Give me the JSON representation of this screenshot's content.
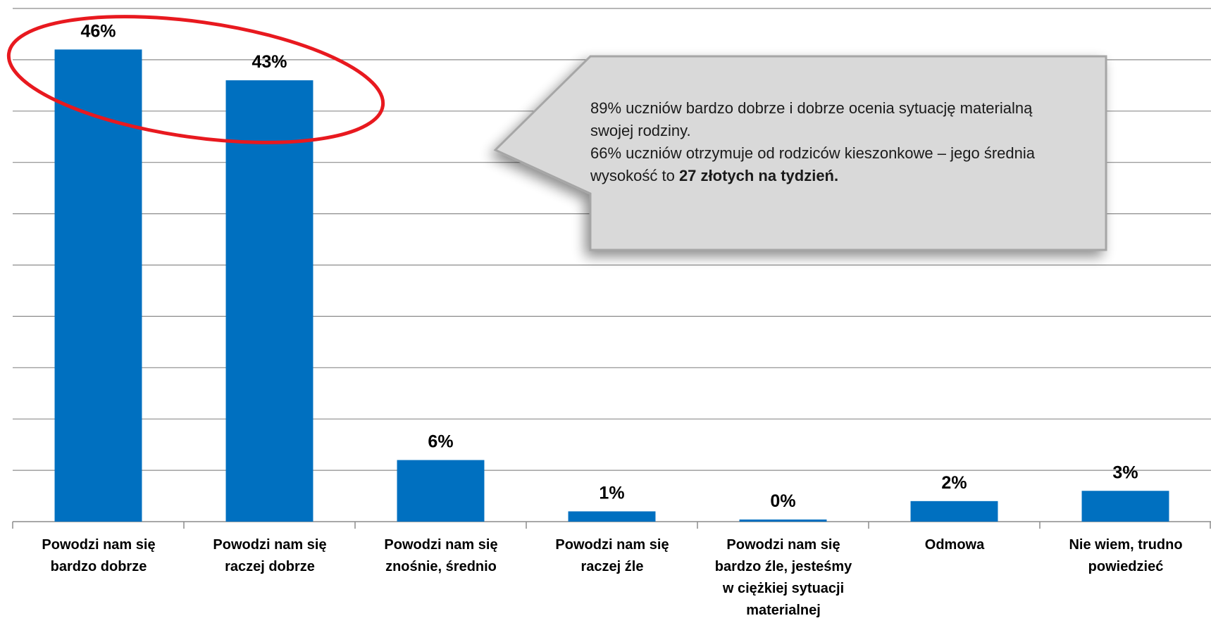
{
  "chart_data": {
    "type": "bar",
    "categories": [
      "Powodzi nam się\nbardzo dobrze",
      "Powodzi nam się\nraczej dobrze",
      "Powodzi nam się\nznośnie, średnio",
      "Powodzi nam się\nraczej źle",
      "Powodzi nam się\nbardzo źle, jesteśmy\nw ciężkiej sytuacji\nmaterialnej",
      "Odmowa",
      "Nie wiem, trudno\npowiedzieć"
    ],
    "values": [
      46,
      43,
      6,
      1,
      0,
      2,
      3
    ],
    "data_labels": [
      "46%",
      "43%",
      "6%",
      "1%",
      "0%",
      "2%",
      "3%"
    ],
    "ylim": [
      0,
      50
    ],
    "grid": true,
    "bar_color": "#0070C0",
    "highlight_color": "#E8191F"
  },
  "callout": {
    "line1": "89% uczniów bardzo dobrze i dobrze ocenia sytuację materialną swojej rodziny.",
    "line2_prefix": "66% uczniów otrzymuje od rodziców kieszonkowe – jego średnia wysokość to ",
    "line2_bold": "27 złotych na tydzień."
  }
}
